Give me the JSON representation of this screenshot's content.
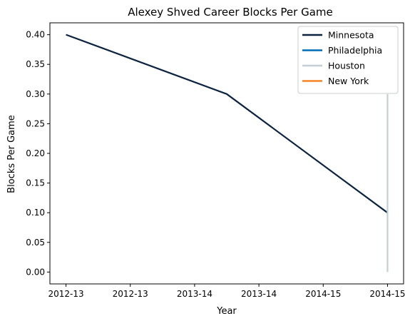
{
  "chart_data": {
    "type": "line",
    "title": "Alexey Shved Career Blocks Per Game",
    "xlabel": "Year",
    "ylabel": "Blocks Per Game",
    "x_tick_labels": [
      "2012-13",
      "2012-13",
      "2013-14",
      "2013-14",
      "2014-15",
      "2014-15"
    ],
    "x_range": [
      -0.1,
      2.1
    ],
    "ylim": [
      -0.02,
      0.42
    ],
    "y_ticks": [
      "0.00",
      "0.05",
      "0.10",
      "0.15",
      "0.20",
      "0.25",
      "0.30",
      "0.35",
      "0.40"
    ],
    "grid": false,
    "legend_position": "top-right",
    "series": [
      {
        "name": "Minnesota",
        "color": "#0c2340",
        "points": [
          {
            "x": 0,
            "y": 0.4
          },
          {
            "x": 1,
            "y": 0.3
          },
          {
            "x": 2,
            "y": 0.1
          }
        ]
      },
      {
        "name": "Philadelphia",
        "color": "#006bb6",
        "points": [
          {
            "x": 2,
            "y": 0.1
          },
          {
            "x": 2,
            "y": 0.1
          }
        ]
      },
      {
        "name": "Houston",
        "color": "#c4ced4",
        "points": [
          {
            "x": 2,
            "y": 0.3
          },
          {
            "x": 2,
            "y": 0.0
          }
        ]
      },
      {
        "name": "New York",
        "color": "#f58426",
        "points": [
          {
            "x": 2,
            "y": 0.1
          },
          {
            "x": 2,
            "y": 0.1
          }
        ]
      }
    ]
  }
}
